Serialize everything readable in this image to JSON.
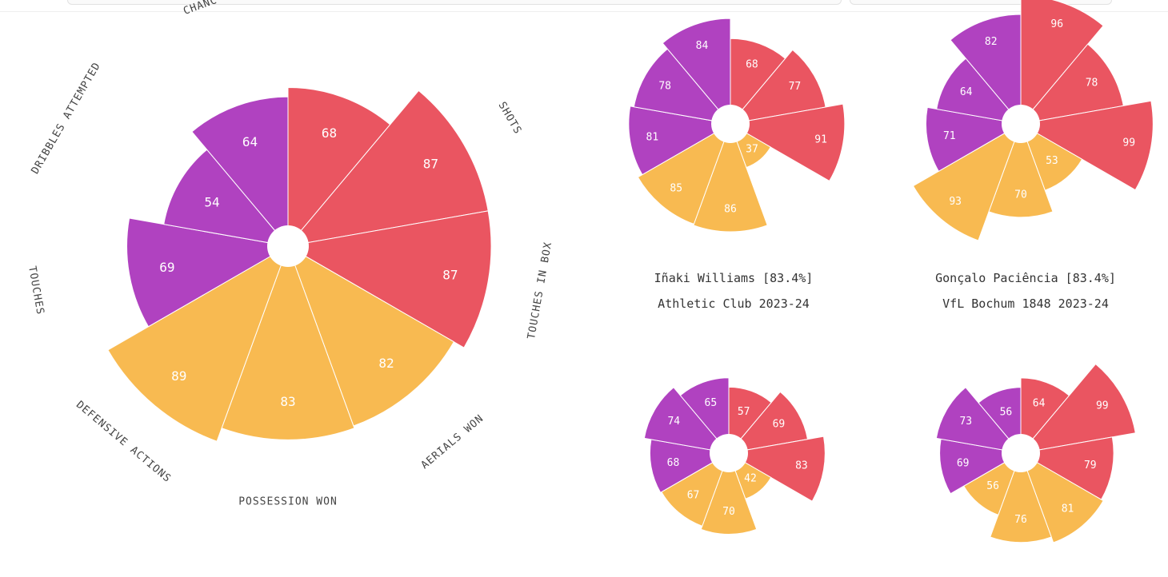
{
  "colors": {
    "attack": "#ea5561",
    "possession": "#b042c0",
    "defense": "#f8ba51",
    "hole": "#ffffff",
    "stroke": "#ffffff"
  },
  "chart_data": [
    {
      "type": "polar-bar",
      "title": "",
      "categories": [
        "",
        "SHOTS",
        "TOUCHES IN BOX",
        "AERIALS WON",
        "POSSESSION WON",
        "DEFENSIVE ACTIONS",
        "TOUCHES",
        "DRIBBLES ATTEMPTED",
        "CHANC"
      ],
      "values": [
        68,
        87,
        87,
        82,
        83,
        89,
        69,
        54,
        64
      ],
      "groups": [
        "attack",
        "attack",
        "attack",
        "defense",
        "defense",
        "defense",
        "possession",
        "possession",
        "possession"
      ],
      "caption": []
    },
    {
      "type": "polar-bar",
      "values": [
        68,
        77,
        91,
        37,
        86,
        85,
        81,
        78,
        84
      ],
      "groups": [
        "attack",
        "attack",
        "attack",
        "defense",
        "defense",
        "defense",
        "possession",
        "possession",
        "possession"
      ],
      "caption": [
        "Iñaki Williams [83.4%]",
        "Athletic Club 2023-24"
      ]
    },
    {
      "type": "polar-bar",
      "values": [
        96,
        78,
        99,
        53,
        70,
        93,
        71,
        64,
        82
      ],
      "groups": [
        "attack",
        "attack",
        "attack",
        "defense",
        "defense",
        "defense",
        "possession",
        "possession",
        "possession"
      ],
      "caption": [
        "Gonçalo Paciência [83.4%]",
        "VfL Bochum 1848 2023-24"
      ]
    },
    {
      "type": "polar-bar",
      "values": [
        57,
        69,
        83,
        42,
        70,
        67,
        68,
        74,
        65
      ],
      "groups": [
        "attack",
        "attack",
        "attack",
        "defense",
        "defense",
        "defense",
        "possession",
        "possession",
        "possession"
      ],
      "caption": []
    },
    {
      "type": "polar-bar",
      "values": [
        64,
        99,
        79,
        81,
        76,
        56,
        69,
        73,
        56
      ],
      "groups": [
        "attack",
        "attack",
        "attack",
        "defense",
        "defense",
        "defense",
        "possession",
        "possession",
        "possession"
      ],
      "caption": []
    }
  ]
}
